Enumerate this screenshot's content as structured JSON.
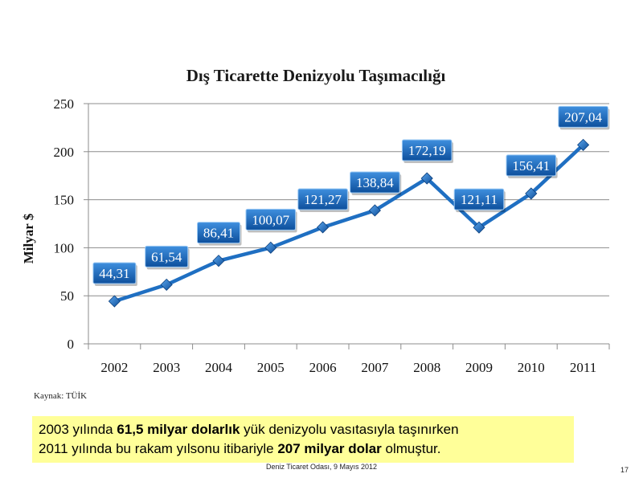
{
  "chart_data": {
    "type": "line",
    "title": "Dış Ticarette Denizyolu Taşımacılığı",
    "ylabel": "Milyar $",
    "xlabel": "",
    "categories": [
      "2002",
      "2003",
      "2004",
      "2005",
      "2006",
      "2007",
      "2008",
      "2009",
      "2010",
      "2011"
    ],
    "series": [
      {
        "values": [
          44.31,
          61.54,
          86.41,
          100.07,
          121.27,
          138.84,
          172.19,
          121.11,
          156.41,
          207.04
        ],
        "labels": [
          "44,31",
          "61,54",
          "86,41",
          "100,07",
          "121,27",
          "138,84",
          "172,19",
          "121,11",
          "156,41",
          "207,04"
        ]
      }
    ],
    "ylim": [
      0,
      250
    ],
    "yticks": [
      0,
      50,
      100,
      150,
      200,
      250
    ],
    "grid": true,
    "legend": "none",
    "line_color": "#1f6fc2"
  },
  "source": "Kaynak: TÜİK",
  "note": {
    "line1_pre": "2003 yılında ",
    "line1_bold": "61,5 milyar dolarlık",
    "line1_post": " yük denizyolu vasıtasıyla taşınırken",
    "line2_pre": "2011 yılında bu rakam yılsonu itibariyle ",
    "line2_bold": "207 milyar dolar",
    "line2_post": " olmuştur."
  },
  "footer": "Deniz Ticaret Odası, 9 Mayıs 2012",
  "page_number": "17"
}
